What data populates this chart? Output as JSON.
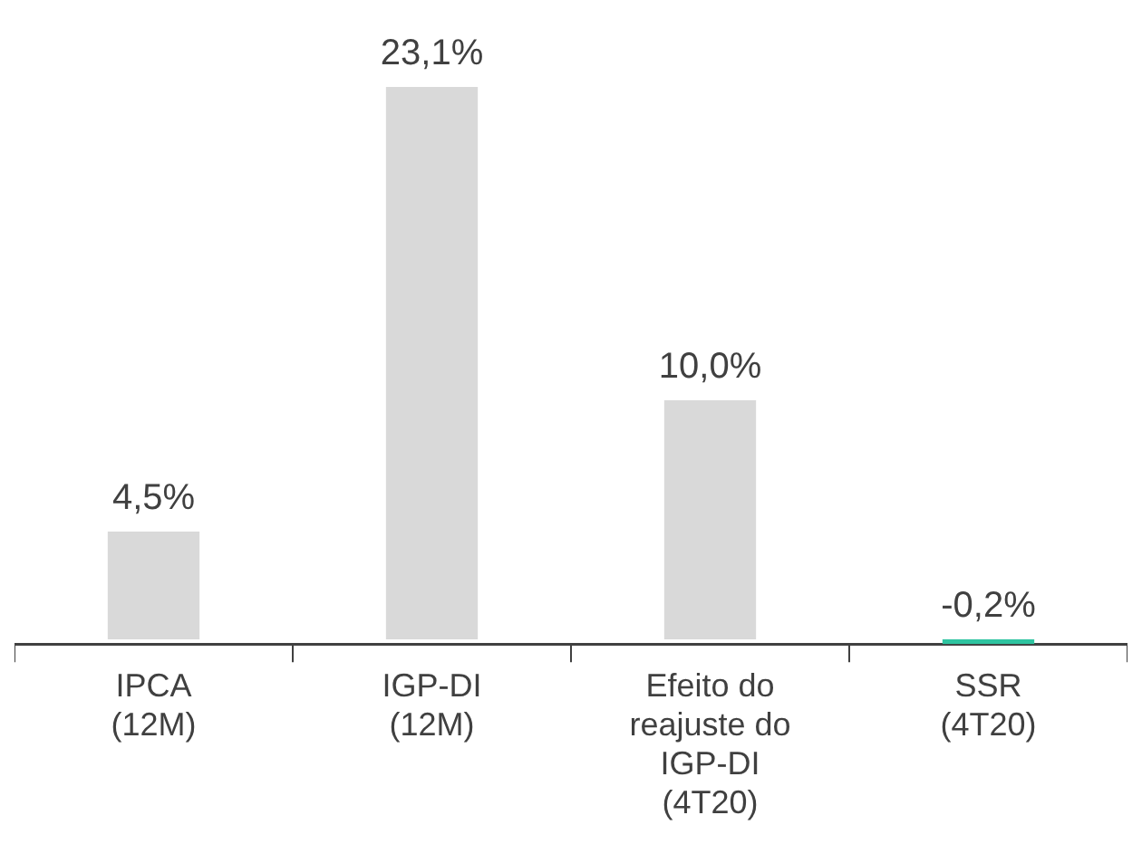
{
  "chart_data": {
    "type": "bar",
    "categories": [
      "IPCA\n(12M)",
      "IGP-DI\n(12M)",
      "Efeito do\nreajuste do\nIGP-DI\n(4T20)",
      "SSR\n(4T20)"
    ],
    "values": [
      4.5,
      23.1,
      10.0,
      -0.2
    ],
    "colors": [
      "#d9d9d9",
      "#d9d9d9",
      "#d9d9d9",
      "#2ec4a0"
    ],
    "value_labels": [
      "4,5%",
      "23,1%",
      "10,0%",
      "-0,2%"
    ],
    "grid": false,
    "legend": false
  }
}
